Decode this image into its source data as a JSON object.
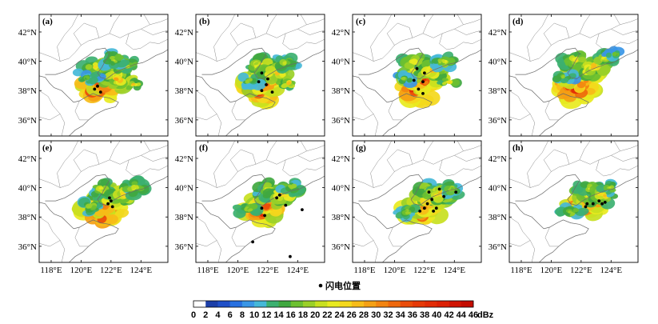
{
  "panels": [
    {
      "id": "a",
      "label": "(a)"
    },
    {
      "id": "b",
      "label": "(b)"
    },
    {
      "id": "c",
      "label": "(c)"
    },
    {
      "id": "d",
      "label": "(d)"
    },
    {
      "id": "e",
      "label": "(e)"
    },
    {
      "id": "f",
      "label": "(f)"
    },
    {
      "id": "g",
      "label": "(g)"
    },
    {
      "id": "h",
      "label": "(h)"
    }
  ],
  "axes": {
    "lat_labels": [
      "42°N",
      "40°N",
      "38°N",
      "36°N"
    ],
    "lat_values": [
      42,
      40,
      38,
      36
    ],
    "lon_labels": [
      "118°E",
      "120°E",
      "122°E",
      "124°E"
    ],
    "lon_values": [
      118,
      120,
      122,
      124
    ],
    "lat_range": [
      34.9,
      43.2
    ],
    "lon_range": [
      117.2,
      125.8
    ]
  },
  "legend": {
    "lightning_label": "闪电位置",
    "colorbar_values": [
      "0",
      "2",
      "4",
      "6",
      "8",
      "10",
      "12",
      "14",
      "16",
      "18",
      "20",
      "22",
      "24",
      "26",
      "28",
      "30",
      "32",
      "34",
      "36",
      "38",
      "40",
      "42",
      "44",
      "46"
    ],
    "unit": "dBz",
    "colors": [
      "#ffffff",
      "#1c3fa8",
      "#2050c8",
      "#2870e0",
      "#3a96e6",
      "#45b8d8",
      "#3cb070",
      "#40a840",
      "#6cc030",
      "#9ad028",
      "#c8e020",
      "#e8ea20",
      "#f4d81c",
      "#f6bc18",
      "#f4a014",
      "#f28410",
      "#ee680c",
      "#ea4c0a",
      "#e63a08",
      "#e22c06",
      "#dc2004",
      "#d01402",
      "#c40c00"
    ]
  },
  "panel_data": [
    {
      "cells": [
        [
          121.2,
          38.2,
          12,
          45,
          1.25
        ],
        [
          121.5,
          38.6,
          12,
          40,
          1.2
        ],
        [
          121.6,
          39.2,
          9,
          34,
          1.0
        ],
        [
          121.0,
          39.6,
          8,
          26,
          0.85
        ],
        [
          122.4,
          38.8,
          9,
          30,
          1.0
        ],
        [
          122.9,
          39.7,
          8,
          24,
          0.8
        ],
        [
          120.4,
          38.9,
          5,
          20,
          0.7
        ],
        [
          123.5,
          38.4,
          3,
          28,
          0.5
        ],
        [
          122.2,
          40.1,
          7,
          22,
          0.75
        ]
      ],
      "lightning": [
        [
          120.9,
          38.1
        ],
        [
          121.1,
          38.3
        ],
        [
          121.3,
          37.9
        ]
      ]
    },
    {
      "cells": [
        [
          121.5,
          38.0,
          12,
          44,
          1.2
        ],
        [
          121.8,
          38.6,
          11,
          40,
          1.1
        ],
        [
          121.9,
          39.2,
          9,
          34,
          1.0
        ],
        [
          121.5,
          39.8,
          8,
          26,
          0.85
        ],
        [
          122.6,
          39.2,
          8,
          30,
          0.9
        ],
        [
          123.2,
          39.9,
          7,
          22,
          0.75
        ],
        [
          120.8,
          38.7,
          5,
          20,
          0.7
        ],
        [
          123.4,
          38.5,
          4,
          28,
          0.55
        ]
      ],
      "lightning": [
        [
          121.6,
          38.0
        ],
        [
          121.9,
          38.4
        ],
        [
          122.0,
          38.8
        ],
        [
          121.6,
          39.2
        ],
        [
          121.4,
          38.6
        ],
        [
          122.3,
          37.9
        ]
      ]
    },
    {
      "cells": [
        [
          121.5,
          38.1,
          12,
          44,
          1.2
        ],
        [
          121.9,
          38.7,
          11,
          40,
          1.1
        ],
        [
          121.9,
          39.4,
          9,
          34,
          1.0
        ],
        [
          121.4,
          39.9,
          8,
          26,
          0.85
        ],
        [
          122.6,
          39.4,
          8,
          30,
          0.9
        ],
        [
          123.3,
          40.0,
          7,
          24,
          0.75
        ],
        [
          120.6,
          38.8,
          5,
          20,
          0.7
        ],
        [
          123.6,
          38.6,
          3,
          28,
          0.5
        ]
      ],
      "lightning": [
        [
          121.6,
          38.1
        ],
        [
          121.9,
          38.6
        ],
        [
          122.0,
          39.2
        ],
        [
          121.5,
          39.5
        ],
        [
          121.3,
          38.7
        ],
        [
          121.9,
          37.8
        ]
      ]
    },
    {
      "cells": [
        [
          121.6,
          38.2,
          12,
          44,
          1.25
        ],
        [
          122.0,
          38.8,
          11,
          40,
          1.15
        ],
        [
          122.0,
          39.5,
          9,
          34,
          1.0
        ],
        [
          121.6,
          40.1,
          8,
          26,
          0.85
        ],
        [
          122.8,
          39.6,
          8,
          30,
          0.9
        ],
        [
          123.6,
          40.2,
          7,
          24,
          0.8
        ],
        [
          120.8,
          38.9,
          5,
          20,
          0.7
        ],
        [
          124.2,
          40.5,
          4,
          18,
          0.6
        ]
      ],
      "lightning": []
    },
    {
      "cells": [
        [
          121.4,
          38.3,
          12,
          44,
          1.25
        ],
        [
          121.8,
          38.9,
          11,
          40,
          1.15
        ],
        [
          122.0,
          39.5,
          9,
          32,
          1.0
        ],
        [
          121.4,
          39.9,
          7,
          24,
          0.8
        ],
        [
          122.8,
          39.6,
          8,
          30,
          0.9
        ],
        [
          123.5,
          40.0,
          7,
          24,
          0.8
        ],
        [
          120.6,
          38.7,
          5,
          22,
          0.7
        ]
      ],
      "lightning": [
        [
          121.8,
          38.9
        ],
        [
          122.0,
          39.1
        ],
        [
          121.9,
          39.3
        ],
        [
          122.1,
          38.7
        ]
      ]
    },
    {
      "cells": [
        [
          121.6,
          38.3,
          12,
          44,
          1.2
        ],
        [
          122.0,
          38.8,
          11,
          40,
          1.1
        ],
        [
          122.4,
          39.4,
          9,
          32,
          1.0
        ],
        [
          122.0,
          39.9,
          7,
          24,
          0.8
        ],
        [
          123.0,
          39.6,
          8,
          30,
          0.9
        ],
        [
          123.6,
          40.0,
          6,
          22,
          0.7
        ],
        [
          120.8,
          38.5,
          5,
          22,
          0.7
        ]
      ],
      "lightning": [
        [
          122.6,
          39.3
        ],
        [
          122.8,
          39.5
        ],
        [
          123.2,
          38.8
        ],
        [
          121.8,
          38.1
        ],
        [
          121.6,
          38.6
        ],
        [
          124.3,
          38.5
        ],
        [
          121.0,
          36.3
        ],
        [
          123.5,
          35.3
        ]
      ]
    },
    {
      "cells": [
        [
          121.6,
          38.4,
          12,
          42,
          1.15
        ],
        [
          122.1,
          38.9,
          11,
          38,
          1.1
        ],
        [
          122.4,
          39.4,
          9,
          32,
          1.0
        ],
        [
          122.2,
          39.9,
          8,
          24,
          0.8
        ],
        [
          123.1,
          39.6,
          8,
          28,
          0.9
        ],
        [
          123.8,
          39.9,
          6,
          22,
          0.7
        ],
        [
          120.9,
          38.3,
          5,
          22,
          0.7
        ]
      ],
      "lightning": [
        [
          122.0,
          38.6
        ],
        [
          122.2,
          38.9
        ],
        [
          122.5,
          39.2
        ],
        [
          122.8,
          38.6
        ],
        [
          122.3,
          39.7
        ],
        [
          123.3,
          39.4
        ],
        [
          121.7,
          38.4
        ],
        [
          122.6,
          38.4
        ],
        [
          123.0,
          39.9
        ],
        [
          124.1,
          39.7
        ]
      ]
    },
    {
      "cells": [
        [
          122.1,
          38.6,
          11,
          42,
          1.1
        ],
        [
          122.6,
          39.0,
          10,
          38,
          1.05
        ],
        [
          122.8,
          39.5,
          8,
          30,
          0.95
        ],
        [
          122.6,
          40.0,
          7,
          24,
          0.8
        ],
        [
          123.5,
          39.5,
          7,
          28,
          0.85
        ],
        [
          124.0,
          40.0,
          6,
          22,
          0.7
        ],
        [
          121.3,
          38.3,
          5,
          22,
          0.7
        ]
      ],
      "lightning": [
        [
          122.3,
          38.7
        ],
        [
          122.4,
          38.9
        ],
        [
          123.2,
          39.1
        ],
        [
          123.4,
          38.9
        ],
        [
          123.6,
          39.0
        ],
        [
          122.8,
          38.9
        ]
      ]
    }
  ]
}
